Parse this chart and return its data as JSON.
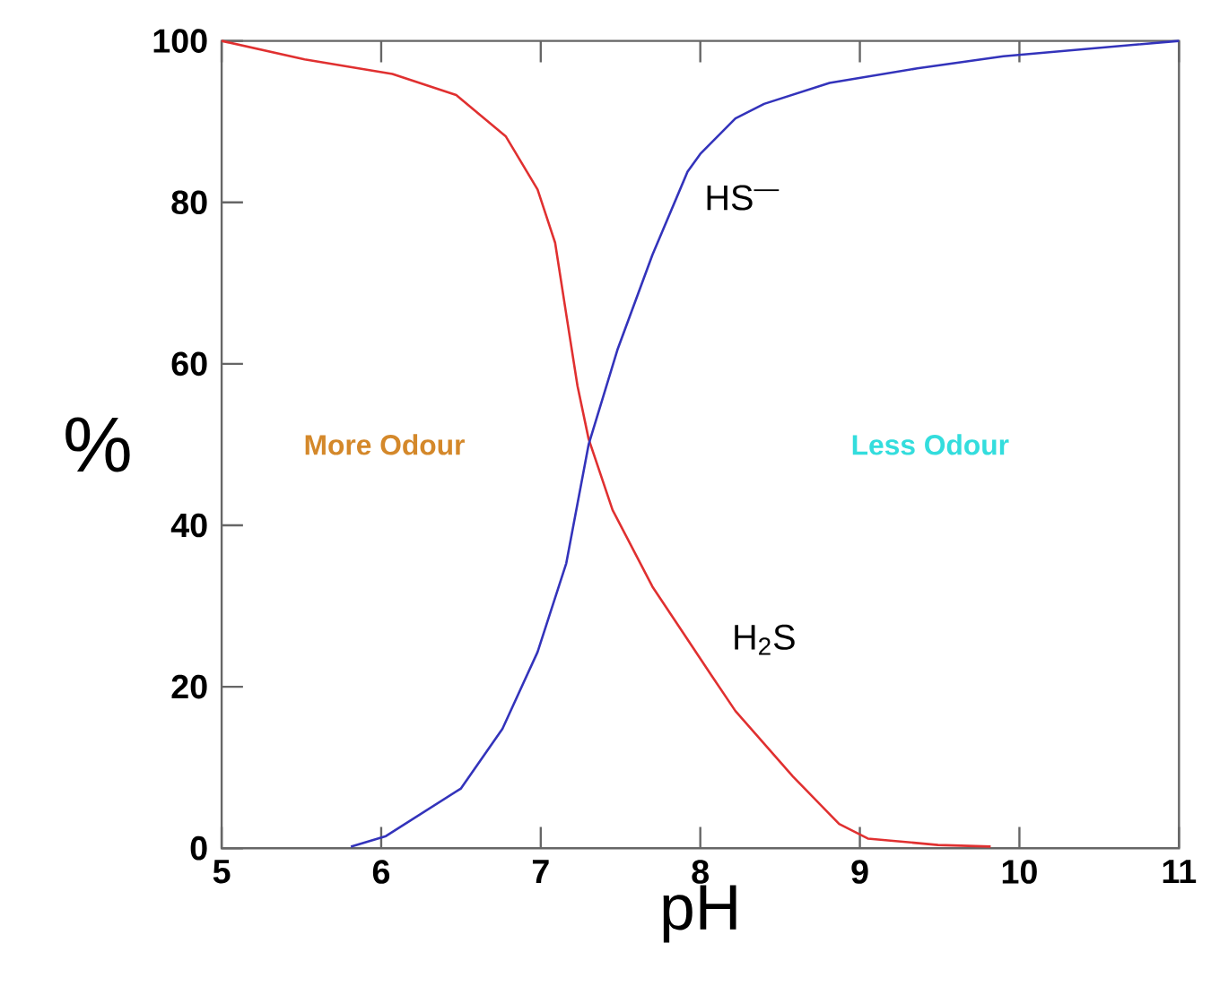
{
  "chart_data": {
    "type": "line",
    "xlabel": "pH",
    "ylabel": "%",
    "xlim": [
      5,
      11
    ],
    "ylim": [
      0,
      100
    ],
    "xticks": [
      5,
      6,
      7,
      8,
      9,
      10,
      11
    ],
    "yticks": [
      0,
      20,
      40,
      60,
      80,
      100
    ],
    "grid": false,
    "legend": false,
    "marker": "none",
    "line_style": "solid",
    "annotations": [
      "More Odour",
      "Less Odour"
    ],
    "series": [
      {
        "name": "H$_{2}$S",
        "color": "#e03030",
        "x": [
          5,
          5.52,
          6.07,
          6.47,
          6.78,
          6.98,
          7.09,
          7.16,
          7.23,
          7.3,
          7.45,
          7.7,
          8.07,
          8.22,
          8.58,
          8.87,
          9.05,
          9.49,
          9.82
        ],
        "values": [
          100,
          97.7,
          95.9,
          93.3,
          88.2,
          81.6,
          75,
          66.1,
          57.3,
          50.7,
          41.9,
          32.4,
          21.4,
          17,
          8.9,
          3,
          1.2,
          0.4,
          0.2
        ]
      },
      {
        "name": "HS$^{—}$",
        "color": "#3333bb",
        "x": [
          5.81,
          6.03,
          6.5,
          6.76,
          6.98,
          7.16,
          7.3,
          7.48,
          7.7,
          7.92,
          8.0,
          8.22,
          8.4,
          8.81,
          9.36,
          9.9,
          11
        ],
        "values": [
          0.2,
          1.5,
          7.4,
          14.8,
          24.3,
          35.3,
          50,
          61.7,
          73.5,
          83.8,
          86,
          90.4,
          92.2,
          94.8,
          96.6,
          98.1,
          100
        ]
      }
    ]
  }
}
